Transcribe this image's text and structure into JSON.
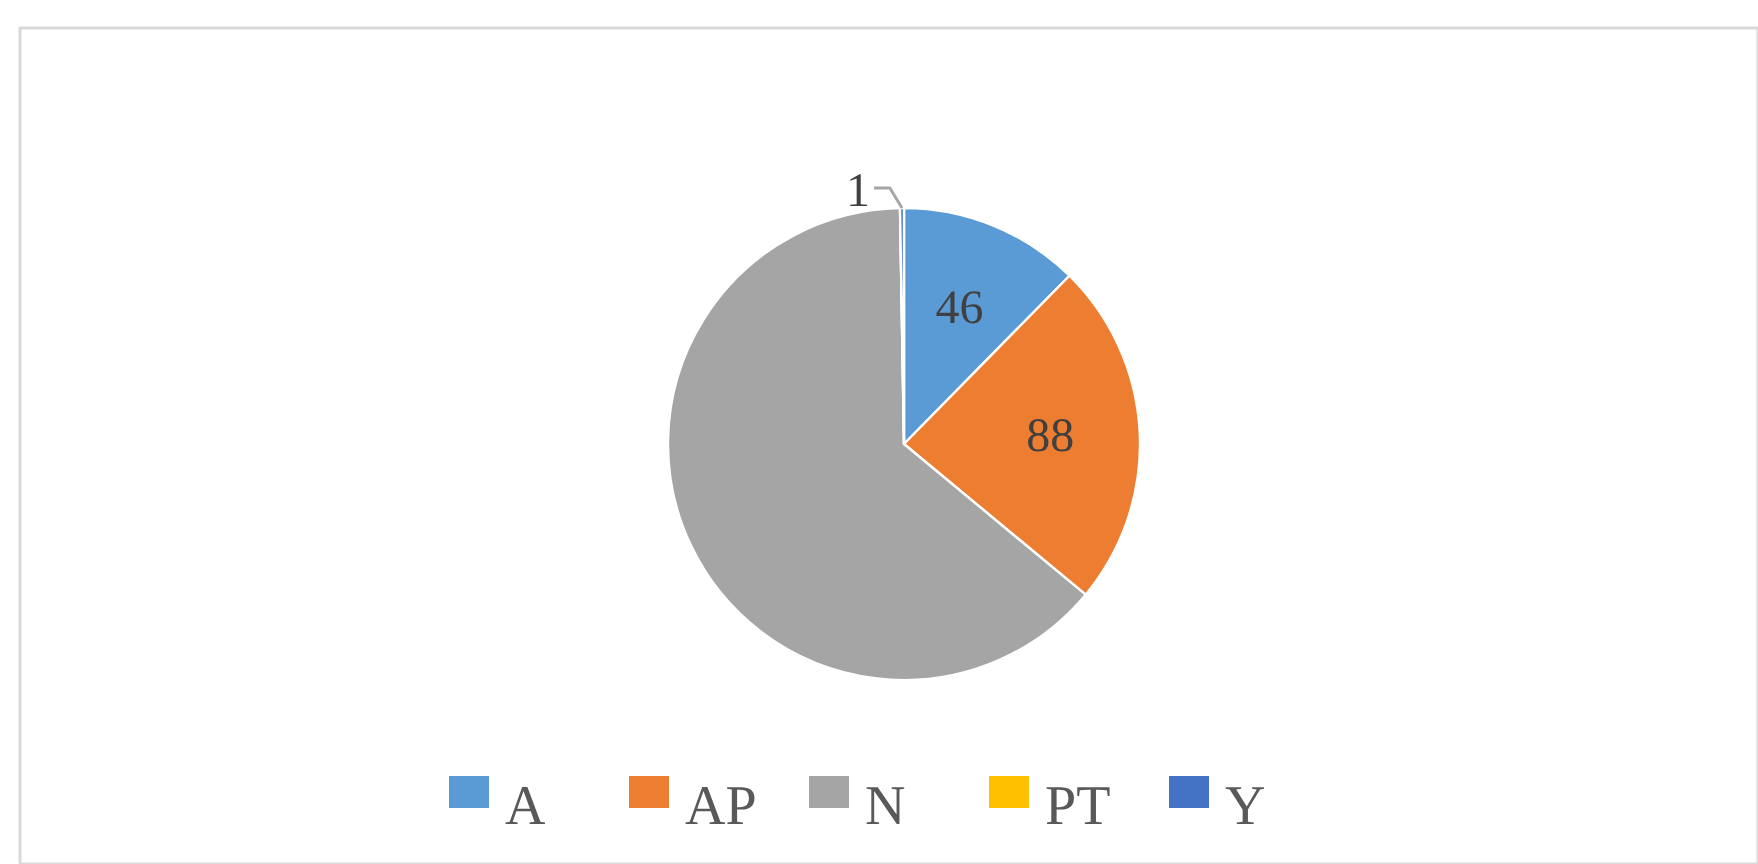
{
  "chart_data": {
    "type": "pie",
    "categories": [
      "A",
      "AP",
      "N",
      "PT",
      "Y"
    ],
    "values": [
      46,
      88,
      237,
      0,
      1
    ],
    "colors": [
      "#5b9bd5",
      "#ed7d31",
      "#a5a5a5",
      "#ffc000",
      "#4472c4"
    ],
    "value_labels": [
      "46",
      "88",
      null,
      null,
      "1"
    ],
    "legend": "bottom"
  }
}
